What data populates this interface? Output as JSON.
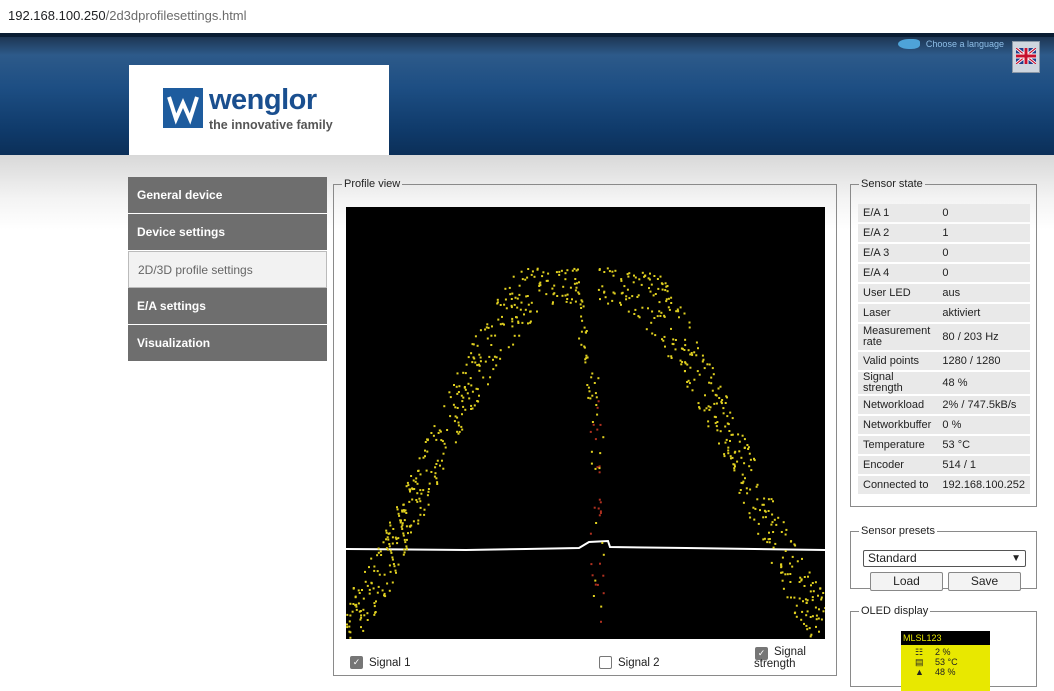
{
  "browser": {
    "url_host": "192.168.100.250",
    "url_path": "/2d3dprofilesettings.html"
  },
  "header": {
    "language_label": "Choose a language",
    "brand": "wenglor",
    "tagline": "the innovative family"
  },
  "nav": {
    "items": [
      {
        "label": "General device"
      },
      {
        "label": "Device settings"
      },
      {
        "label": "2D/3D profile settings"
      },
      {
        "label": "E/A settings"
      },
      {
        "label": "Visualization"
      }
    ]
  },
  "profile_view": {
    "legend": "Profile view",
    "signal1_label": "Signal 1",
    "signal2_label": "Signal 2",
    "strength_label_1": "Signal",
    "strength_label_2": "strength",
    "colors": {
      "points": "#e0d020",
      "profile_line": "#ffffff",
      "background": "#000000"
    }
  },
  "sensor_state": {
    "legend": "Sensor state",
    "rows": [
      {
        "k1": "E/A 1",
        "v": "0"
      },
      {
        "k1": "E/A 2",
        "v": "1"
      },
      {
        "k1": "E/A 3",
        "v": "0"
      },
      {
        "k1": "E/A 4",
        "v": "0"
      },
      {
        "k1": "User LED",
        "v": "aus"
      },
      {
        "k1": "Laser",
        "v": "aktiviert"
      },
      {
        "k1": "Measurement",
        "k2": "rate",
        "v": "80 / 203 Hz"
      },
      {
        "k1": "Valid points",
        "v": "1280 / 1280"
      },
      {
        "k1": "Signal strength",
        "v": "48 %"
      },
      {
        "k1": "Networkload",
        "v": "2% / 747.5kB/s"
      },
      {
        "k1": "Networkbuffer",
        "v": "0 %"
      },
      {
        "k1": "Temperature",
        "v": "53 °C"
      },
      {
        "k1": "Encoder",
        "v": "514 / 1"
      },
      {
        "k1": "Connected to",
        "v": "192.168.100.252"
      }
    ]
  },
  "presets": {
    "legend": "Sensor presets",
    "selected": "Standard",
    "load": "Load",
    "save": "Save"
  },
  "oled": {
    "legend": "OLED display",
    "title": "MLSL123",
    "rows": [
      {
        "icon": "network-icon",
        "v": "2 %"
      },
      {
        "icon": "thermometer-icon",
        "v": "53 °C"
      },
      {
        "icon": "signal-icon",
        "v": "48 %"
      }
    ]
  }
}
